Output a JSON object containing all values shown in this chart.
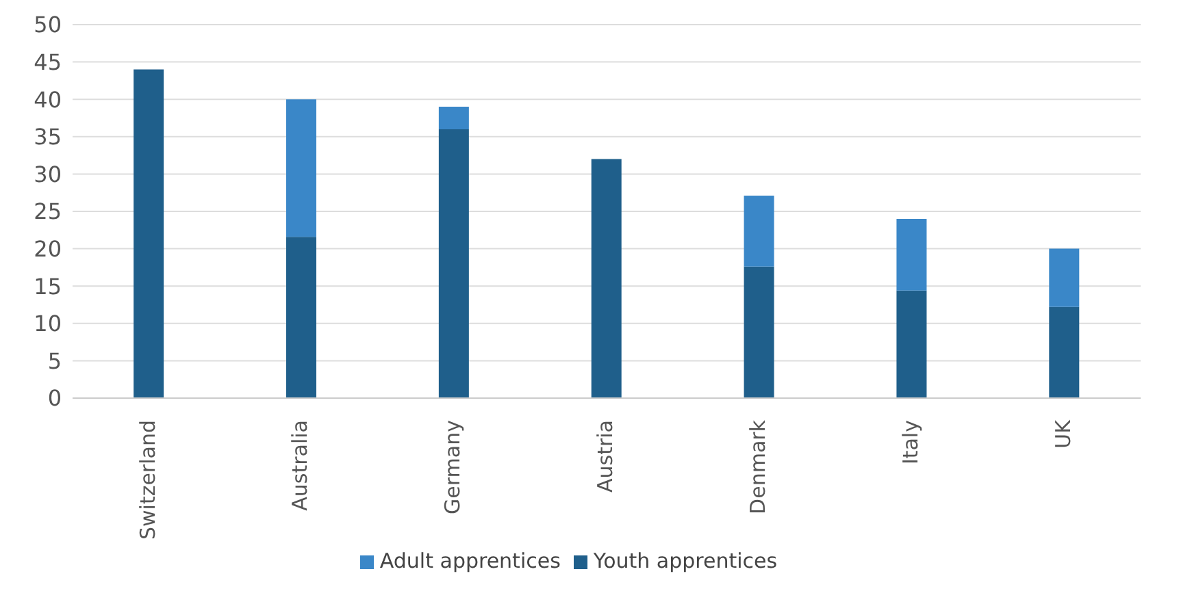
{
  "chart_data": {
    "type": "bar",
    "stacked": true,
    "categories": [
      "Switzerland",
      "Australia",
      "Germany",
      "Austria",
      "Denmark",
      "Italy",
      "UK"
    ],
    "series": [
      {
        "name": "Youth apprentices",
        "color": "#1f5f8b",
        "values": [
          44,
          21.6,
          36,
          32,
          17.6,
          14.4,
          12.2
        ]
      },
      {
        "name": "Adult apprentices",
        "color": "#3a87c8",
        "values": [
          null,
          18.4,
          3,
          null,
          9.5,
          9.6,
          7.8
        ]
      }
    ],
    "ylim": [
      0,
      50
    ],
    "yticks": [
      0,
      5,
      10,
      15,
      20,
      25,
      30,
      35,
      40,
      45,
      50
    ],
    "grid": "y",
    "legend": "bottom"
  }
}
